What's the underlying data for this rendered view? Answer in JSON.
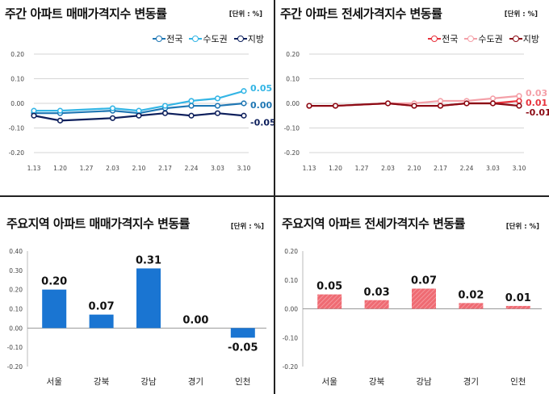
{
  "panels": {
    "top_left": {
      "title": "주간 아파트 매매가격지수 변동률",
      "unit": "[단위 : %]"
    },
    "top_right": {
      "title": "주간 아파트 전세가격지수 변동률",
      "unit": "[단위 : %]"
    },
    "bottom_left": {
      "title": "주요지역 아파트 매매가격지수 변동률",
      "unit": "[단위 : %]"
    },
    "bottom_right": {
      "title": "주요지역 아파트 전세가격지수 변동률",
      "unit": "[단위 : %]"
    }
  },
  "chart_data": [
    {
      "type": "line",
      "title": "주간 아파트 매매가격지수 변동률",
      "x": [
        "1.13",
        "1.20",
        "1.27",
        "2.03",
        "2.10",
        "2.17",
        "2.24",
        "3.03",
        "3.10"
      ],
      "ylim": [
        -0.2,
        0.2
      ],
      "yticks": [
        "0.20",
        "0.10",
        "0.00",
        "-0.10",
        "-0.20"
      ],
      "grid": true,
      "legend": "top-right",
      "series": [
        {
          "name": "전국",
          "color": "#1f77b4",
          "values": [
            -0.04,
            -0.04,
            null,
            -0.03,
            -0.04,
            -0.02,
            -0.01,
            -0.01,
            0.0
          ],
          "end_label": "0.00"
        },
        {
          "name": "수도권",
          "color": "#33b5e5",
          "values": [
            -0.03,
            -0.03,
            null,
            -0.02,
            -0.03,
            -0.01,
            0.01,
            0.02,
            0.05
          ],
          "end_label": "0.05"
        },
        {
          "name": "지방",
          "color": "#0d1f5c",
          "values": [
            -0.05,
            -0.07,
            null,
            -0.06,
            -0.05,
            -0.04,
            -0.05,
            -0.04,
            -0.05
          ],
          "end_label": "-0.05"
        }
      ]
    },
    {
      "type": "line",
      "title": "주간 아파트 전세가격지수 변동률",
      "x": [
        "1.13",
        "1.20",
        "1.27",
        "2.03",
        "2.10",
        "2.17",
        "2.24",
        "3.03",
        "3.10"
      ],
      "ylim": [
        -0.2,
        0.2
      ],
      "yticks": [
        "0.20",
        "0.10",
        "0.00",
        "-0.10",
        "-0.20"
      ],
      "grid": true,
      "legend": "top-right",
      "series": [
        {
          "name": "전국",
          "color": "#e8323c",
          "values": [
            -0.01,
            -0.01,
            null,
            0.0,
            -0.01,
            -0.01,
            0.0,
            0.0,
            0.01
          ],
          "end_label": "0.01"
        },
        {
          "name": "수도권",
          "color": "#f4a0a8",
          "values": [
            -0.01,
            -0.01,
            null,
            0.0,
            0.0,
            0.01,
            0.01,
            0.02,
            0.03
          ],
          "end_label": "0.03"
        },
        {
          "name": "지방",
          "color": "#8b0a14",
          "values": [
            -0.01,
            -0.01,
            null,
            0.0,
            -0.01,
            -0.01,
            0.0,
            0.0,
            -0.01
          ],
          "end_label": "-0.01"
        }
      ]
    },
    {
      "type": "bar",
      "title": "주요지역 아파트 매매가격지수 변동률",
      "categories": [
        "서울",
        "강북",
        "강남",
        "경기",
        "인천"
      ],
      "values": [
        0.2,
        0.07,
        0.31,
        0.0,
        -0.05
      ],
      "value_labels": [
        "0.20",
        "0.07",
        "0.31",
        "0.00",
        "-0.05"
      ],
      "ylim": [
        -0.2,
        0.4
      ],
      "yticks": [
        "0.40",
        "0.30",
        "0.20",
        "0.10",
        "0.00",
        "-0.10",
        "-0.20"
      ],
      "color": "#1a75d2",
      "grid": false
    },
    {
      "type": "bar",
      "title": "주요지역 아파트 전세가격지수 변동률",
      "categories": [
        "서울",
        "강북",
        "강남",
        "경기",
        "인천"
      ],
      "values": [
        0.05,
        0.03,
        0.07,
        0.02,
        0.01
      ],
      "value_labels": [
        "0.05",
        "0.03",
        "0.07",
        "0.02",
        "0.01"
      ],
      "ylim": [
        -0.2,
        0.2
      ],
      "yticks": [
        "0.20",
        "0.10",
        "0.00",
        "-0.10",
        "-0.20"
      ],
      "color": "#ef6b73",
      "grid": false
    }
  ]
}
